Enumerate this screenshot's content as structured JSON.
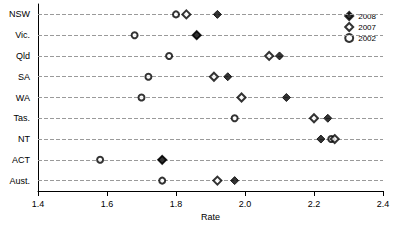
{
  "chart_data": {
    "type": "scatter",
    "orientation": "horizontal",
    "categories": [
      "NSW",
      "Vic.",
      "Qld",
      "SA",
      "WA",
      "Tas.",
      "NT",
      "ACT",
      "Aust."
    ],
    "series": [
      {
        "name": "2008",
        "color": "#000000",
        "marker": "diamond",
        "values": [
          1.92,
          1.86,
          2.1,
          1.95,
          2.12,
          2.24,
          2.22,
          1.76,
          1.97
        ]
      },
      {
        "name": "2007",
        "color": "#000000",
        "marker": "hollow_diamond",
        "values": [
          1.83,
          1.86,
          2.07,
          1.91,
          1.99,
          2.2,
          2.26,
          1.76,
          1.92
        ]
      },
      {
        "name": "2002",
        "color": "#000000",
        "marker": "hollow_circle",
        "values": [
          1.8,
          1.68,
          1.78,
          1.72,
          1.7,
          1.97,
          2.25,
          1.58,
          1.76
        ]
      }
    ],
    "xlabel": "Rate",
    "xlim": [
      1.4,
      2.4
    ],
    "xticks": [
      1.4,
      1.6,
      1.8,
      {
        "value": 2.0,
        "label": "2.0"
      },
      2.2,
      2.4
    ],
    "grid": true,
    "legend": "top-right"
  }
}
